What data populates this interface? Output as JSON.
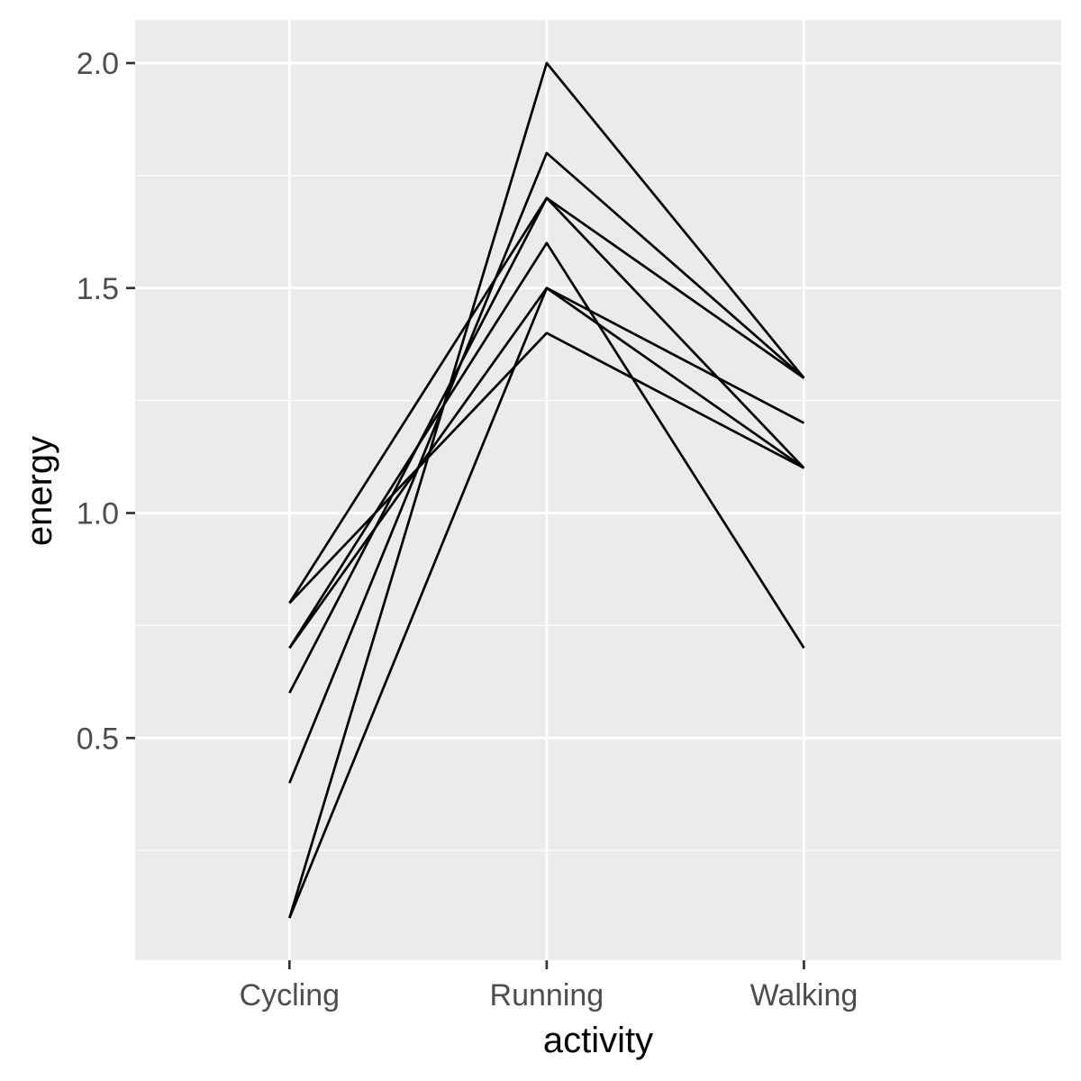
{
  "chart_data": {
    "type": "line",
    "title": "",
    "xlabel": "activity",
    "ylabel": "energy",
    "categories": [
      "Cycling",
      "Running",
      "Walking"
    ],
    "ylim": [
      0.0,
      2.1
    ],
    "y_ticks": [
      0.5,
      1.0,
      1.5,
      2.0
    ],
    "y_tick_labels": [
      "0.5",
      "1.0",
      "1.5",
      "2.0"
    ],
    "y_minor_ticks": [
      0.25,
      0.75,
      1.25,
      1.75
    ],
    "grid": true,
    "legend": "none",
    "colors": {
      "panel": "#EBEBEB",
      "grid": "#FFFFFF",
      "line": "#000000",
      "tick_text": "#4D4D4D",
      "title_text": "#000000"
    },
    "series": [
      {
        "values": [
          0.1,
          2.0,
          1.3
        ]
      },
      {
        "values": [
          0.4,
          1.8,
          1.3
        ]
      },
      {
        "values": [
          0.6,
          1.7,
          1.3
        ]
      },
      {
        "values": [
          0.8,
          1.7,
          1.1
        ]
      },
      {
        "values": [
          0.7,
          1.6,
          0.7
        ]
      },
      {
        "values": [
          0.7,
          1.5,
          1.2
        ]
      },
      {
        "values": [
          0.8,
          1.4,
          1.1
        ]
      },
      {
        "values": [
          0.1,
          1.5,
          1.1
        ]
      }
    ]
  }
}
